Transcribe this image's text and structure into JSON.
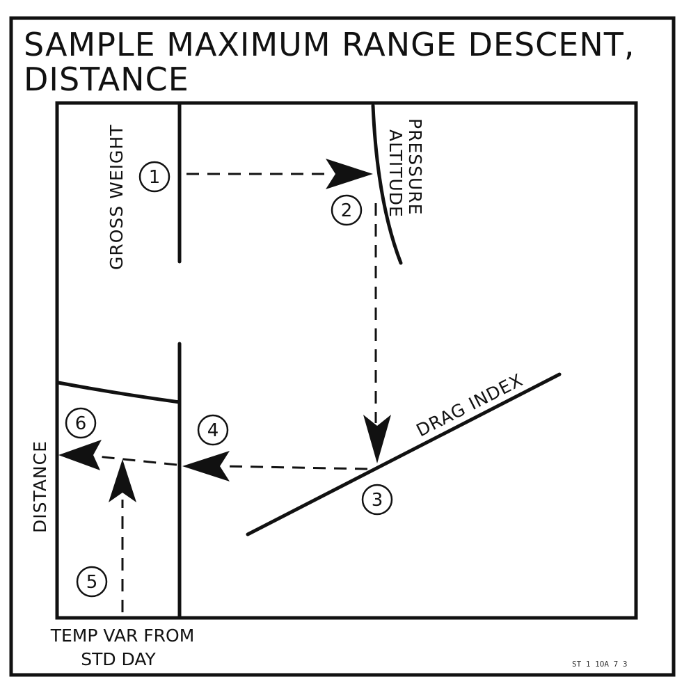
{
  "title": {
    "line1": "SAMPLE MAXIMUM RANGE DESCENT,",
    "line2": "DISTANCE"
  },
  "labels": {
    "gross_weight": "GROSS WEIGHT",
    "pressure_altitude_line1": "PRESSURE",
    "pressure_altitude_line2": "ALTITUDE",
    "drag_index": "DRAG INDEX",
    "distance": "DISTANCE",
    "temp_var_line1": "TEMP VAR FROM",
    "temp_var_line2": "STD DAY"
  },
  "steps": [
    "1",
    "2",
    "3",
    "4",
    "5",
    "6"
  ],
  "figure_ref": "ST 1 1OA 7 3"
}
